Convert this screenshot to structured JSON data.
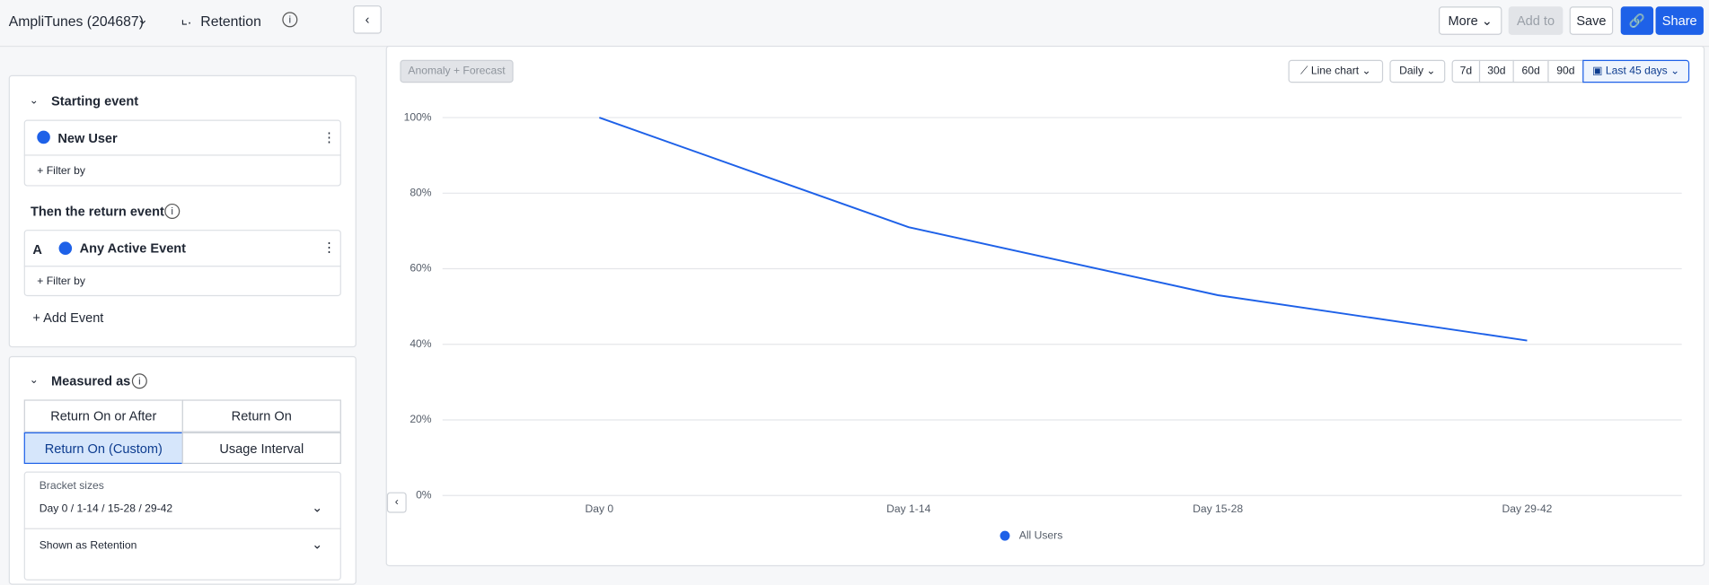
{
  "header": {
    "account": "AmpliTunes (204687)",
    "chart_kind": "Retention",
    "more": "More",
    "add_to": "Add to",
    "save": "Save",
    "share": "Share"
  },
  "sidebar": {
    "starting_title": "Starting event",
    "starting_event": "New User",
    "filter_1": "+ Filter by",
    "return_title": "Then the return event",
    "return_letter": "A",
    "return_event": "Any Active Event",
    "filter_2": "+ Filter by",
    "add_event": "+ Add Event",
    "measured_title": "Measured as",
    "options": [
      "Return On or After",
      "Return On",
      "Return On (Custom)",
      "Usage Interval"
    ],
    "bracket_label": "Bracket sizes",
    "bracket_value": "Day 0 / 1-14 / 15-28 / 29-42",
    "shown_as": "Shown as Retention"
  },
  "toolbar": {
    "anomaly": "Anomaly + Forecast",
    "chart_type": "Line chart",
    "interval": "Daily",
    "ranges": [
      "7d",
      "30d",
      "60d",
      "90d"
    ],
    "date_range": "Last 45 days"
  },
  "chart_data": {
    "type": "line",
    "categories": [
      "Day 0",
      "Day 1-14",
      "Day 15-28",
      "Day 29-42"
    ],
    "series": [
      {
        "name": "All Users",
        "color": "#1e61e8",
        "values": [
          100,
          71,
          53,
          41
        ]
      }
    ],
    "ylim": [
      0,
      100
    ],
    "yticks": [
      {
        "value": 0,
        "label": "0%"
      },
      {
        "value": 20,
        "label": "20%"
      },
      {
        "value": 40,
        "label": "40%"
      },
      {
        "value": 60,
        "label": "60%"
      },
      {
        "value": 80,
        "label": "80%"
      },
      {
        "value": 100,
        "label": "100%"
      }
    ],
    "grid": true
  }
}
